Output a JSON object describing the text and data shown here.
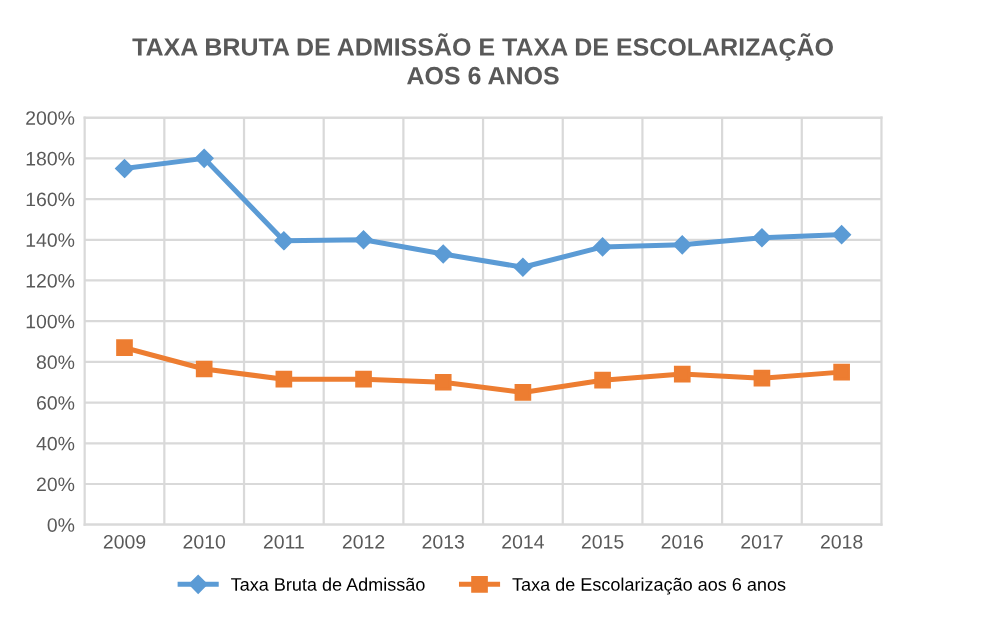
{
  "chart_data": {
    "type": "line",
    "title": "TAXA BRUTA DE ADMISSÃO E TAXA DE ESCOLARIZAÇÃO\nAOS 6 ANOS",
    "categories": [
      "2009",
      "2010",
      "2011",
      "2012",
      "2013",
      "2014",
      "2015",
      "2016",
      "2017",
      "2018"
    ],
    "series": [
      {
        "name": "Taxa Bruta de Admissão",
        "color": "#5b9bd5",
        "marker": "diamond",
        "values": [
          175,
          180,
          139.5,
          140,
          133,
          126.5,
          136.5,
          137.5,
          141,
          142.5
        ]
      },
      {
        "name": "Taxa de Escolarização aos 6 anos",
        "color": "#ed7d31",
        "marker": "square",
        "values": [
          87,
          76.5,
          71.5,
          71.5,
          70,
          65,
          71,
          74,
          72,
          75
        ]
      }
    ],
    "ylim": [
      0,
      200
    ],
    "yticks": [
      {
        "value": 0,
        "label": "0%"
      },
      {
        "value": 20,
        "label": "20%"
      },
      {
        "value": 40,
        "label": "40%"
      },
      {
        "value": 60,
        "label": "60%"
      },
      {
        "value": 80,
        "label": "80%"
      },
      {
        "value": 100,
        "label": "100%"
      },
      {
        "value": 120,
        "label": "120%"
      },
      {
        "value": 140,
        "label": "140%"
      },
      {
        "value": 160,
        "label": "160%"
      },
      {
        "value": 180,
        "label": "180%"
      },
      {
        "value": 200,
        "label": "200%"
      }
    ],
    "grid": true,
    "legend": "bottom",
    "line_style": "solid"
  }
}
